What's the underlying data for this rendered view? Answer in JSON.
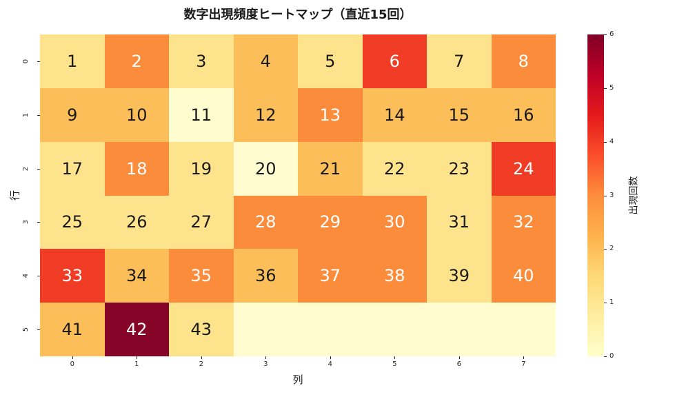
{
  "title": "数字出現頻度ヒートマップ（直近15回）",
  "chart_data": {
    "type": "heatmap",
    "title": "数字出現頻度ヒートマップ（直近15回）",
    "xlabel": "列",
    "ylabel": "行",
    "x_tick_labels": [
      "0",
      "1",
      "2",
      "3",
      "4",
      "5",
      "6",
      "7"
    ],
    "y_tick_labels": [
      "0",
      "1",
      "2",
      "3",
      "4",
      "5"
    ],
    "vmin": 0,
    "vmax": 6,
    "grid": false,
    "annotation_text_white_min": 3,
    "annotation_dark_color": "#1a1a1a",
    "annotation_light_color": "#ffffff",
    "value_colors": {
      "0": "#fffdd0",
      "1": "#fde38c",
      "2": "#fcbe59",
      "3": "#fb8c3c",
      "4": "#f13c25",
      "5": "#ca0923",
      "6": "#860428"
    },
    "colorbar": {
      "label": "出現回数",
      "ticks": [
        "0",
        "1",
        "2",
        "3",
        "4",
        "5",
        "6"
      ],
      "min": 0,
      "max": 6,
      "position": "right",
      "gradient_bottom_to_top": [
        "#ffffcc",
        "#ffeda0",
        "#fed976",
        "#feb24c",
        "#fd8d3c",
        "#fc4e2a",
        "#e31a1c",
        "#bd0026",
        "#800026"
      ]
    },
    "rows": [
      {
        "cells": [
          {
            "label": "1",
            "value": 1
          },
          {
            "label": "2",
            "value": 3
          },
          {
            "label": "3",
            "value": 1
          },
          {
            "label": "4",
            "value": 2
          },
          {
            "label": "5",
            "value": 1
          },
          {
            "label": "6",
            "value": 4
          },
          {
            "label": "7",
            "value": 1
          },
          {
            "label": "8",
            "value": 3
          }
        ]
      },
      {
        "cells": [
          {
            "label": "9",
            "value": 2
          },
          {
            "label": "10",
            "value": 2
          },
          {
            "label": "11",
            "value": 0
          },
          {
            "label": "12",
            "value": 2
          },
          {
            "label": "13",
            "value": 3
          },
          {
            "label": "14",
            "value": 2
          },
          {
            "label": "15",
            "value": 2
          },
          {
            "label": "16",
            "value": 2
          }
        ]
      },
      {
        "cells": [
          {
            "label": "17",
            "value": 1
          },
          {
            "label": "18",
            "value": 3
          },
          {
            "label": "19",
            "value": 1
          },
          {
            "label": "20",
            "value": 0
          },
          {
            "label": "21",
            "value": 2
          },
          {
            "label": "22",
            "value": 1
          },
          {
            "label": "23",
            "value": 1
          },
          {
            "label": "24",
            "value": 4
          }
        ]
      },
      {
        "cells": [
          {
            "label": "25",
            "value": 1
          },
          {
            "label": "26",
            "value": 1
          },
          {
            "label": "27",
            "value": 1
          },
          {
            "label": "28",
            "value": 3
          },
          {
            "label": "29",
            "value": 3
          },
          {
            "label": "30",
            "value": 3
          },
          {
            "label": "31",
            "value": 1
          },
          {
            "label": "32",
            "value": 3
          }
        ]
      },
      {
        "cells": [
          {
            "label": "33",
            "value": 4
          },
          {
            "label": "34",
            "value": 2
          },
          {
            "label": "35",
            "value": 3
          },
          {
            "label": "36",
            "value": 2
          },
          {
            "label": "37",
            "value": 3
          },
          {
            "label": "38",
            "value": 3
          },
          {
            "label": "39",
            "value": 1
          },
          {
            "label": "40",
            "value": 3
          }
        ]
      },
      {
        "cells": [
          {
            "label": "41",
            "value": 2
          },
          {
            "label": "42",
            "value": 6
          },
          {
            "label": "43",
            "value": 1
          },
          {
            "label": "",
            "value": 0
          },
          {
            "label": "",
            "value": 0
          },
          {
            "label": "",
            "value": 0
          },
          {
            "label": "",
            "value": 0
          },
          {
            "label": "",
            "value": 0
          }
        ]
      }
    ]
  }
}
